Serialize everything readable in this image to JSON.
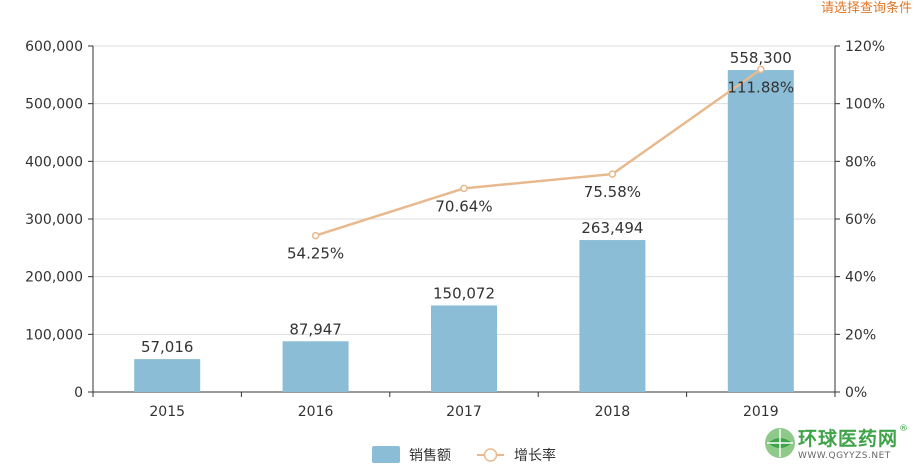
{
  "hint_link": "请选择查询条件",
  "watermark": {
    "name": "环球医药网",
    "url": "WWW.QGYYZS.NET",
    "reg": "®"
  },
  "colors": {
    "bar": "#8bbdd6",
    "line": "#e8b98e",
    "axis": "#333333",
    "grid": "#dddddd"
  },
  "chart_data": {
    "type": "bar",
    "categories": [
      "2015",
      "2016",
      "2017",
      "2018",
      "2019"
    ],
    "series": [
      {
        "name": "销售额",
        "type": "bar",
        "axis": "left",
        "values": [
          57016,
          87947,
          150072,
          263494,
          558300
        ],
        "labels": [
          "57,016",
          "87,947",
          "150,072",
          "263,494",
          "558,300"
        ]
      },
      {
        "name": "增长率",
        "type": "line",
        "axis": "right",
        "values": [
          null,
          54.25,
          70.64,
          75.58,
          111.88
        ],
        "labels": [
          "",
          "54.25%",
          "70.64%",
          "75.58%",
          "111.88%"
        ]
      }
    ],
    "y_left": {
      "ylim": [
        0,
        600000
      ],
      "ticks": [
        0,
        100000,
        200000,
        300000,
        400000,
        500000,
        600000
      ],
      "tick_labels": [
        "0",
        "100,000",
        "200,000",
        "300,000",
        "400,000",
        "500,000",
        "600,000"
      ]
    },
    "y_right": {
      "ylim": [
        0,
        120
      ],
      "ticks": [
        0,
        20,
        40,
        60,
        80,
        100,
        120
      ],
      "tick_labels": [
        "0%",
        "20%",
        "40%",
        "60%",
        "80%",
        "100%",
        "120%"
      ]
    },
    "grid": true,
    "legend": {
      "position": "bottom-center",
      "items": [
        "销售额",
        "增长率"
      ]
    }
  }
}
